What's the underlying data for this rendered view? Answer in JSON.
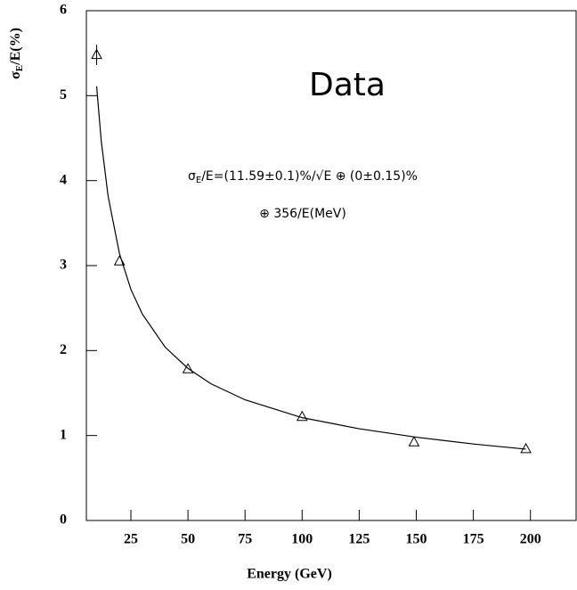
{
  "chart_data": {
    "type": "scatter",
    "legend_text": "Data",
    "fit_label": {
      "symbol": "σ",
      "sub": "E",
      "rest": "/E=(11.59±0.1)%/√E ⊕ (0±0.15)%",
      "line2": "⊕ 356/E(MeV)"
    },
    "x_label": "Energy (GeV)",
    "y_label": {
      "symbol": "σ",
      "sub": "E",
      "rest": "/E(%)"
    },
    "xlim": [
      5.5,
      220
    ],
    "xticks": [
      25,
      50,
      75,
      100,
      125,
      150,
      175,
      200
    ],
    "ylim": [
      0,
      6
    ],
    "yticks": [
      0,
      1,
      2,
      3,
      4,
      5,
      6
    ],
    "color": "#000000",
    "points": {
      "x": [
        10,
        20,
        50,
        100,
        149,
        198
      ],
      "values": [
        5.48,
        3.05,
        1.78,
        1.22,
        0.92,
        0.84
      ],
      "errors": [
        0.12,
        0,
        0,
        0,
        0,
        0
      ]
    },
    "fit": {
      "x": [
        10,
        12,
        15,
        20,
        25,
        30,
        40,
        50,
        60,
        75,
        100,
        125,
        150,
        175,
        198
      ],
      "values": [
        5.11,
        4.47,
        3.82,
        3.14,
        2.72,
        2.43,
        2.04,
        1.79,
        1.61,
        1.42,
        1.21,
        1.08,
        0.98,
        0.9,
        0.84
      ]
    }
  }
}
